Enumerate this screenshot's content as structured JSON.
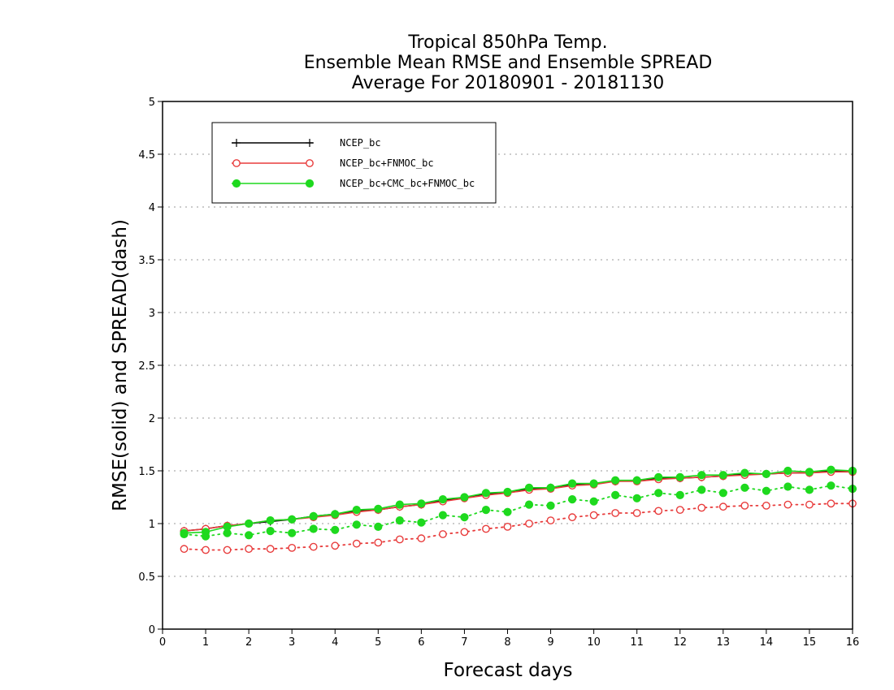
{
  "chart_data": {
    "type": "line",
    "title": [
      "Tropical 850hPa Temp.",
      "Ensemble Mean RMSE and Ensemble SPREAD",
      "Average For 20180901 - 20181130"
    ],
    "xlabel": "Forecast days",
    "ylabel": "RMSE(solid) and SPREAD(dash)",
    "xlim": [
      0,
      16
    ],
    "ylim": [
      0,
      5
    ],
    "xticks": [
      "0",
      "1",
      "2",
      "3",
      "4",
      "5",
      "6",
      "7",
      "8",
      "9",
      "10",
      "11",
      "12",
      "13",
      "14",
      "15",
      "16"
    ],
    "yticks": [
      "0",
      "0.5",
      "1",
      "1.5",
      "2",
      "2.5",
      "3",
      "3.5",
      "4",
      "4.5",
      "5"
    ],
    "grid": "horizontal-dotted",
    "legend_position": "top-left",
    "x": [
      0.5,
      1,
      1.5,
      2,
      2.5,
      3,
      3.5,
      4,
      4.5,
      5,
      5.5,
      6,
      6.5,
      7,
      7.5,
      8,
      8.5,
      9,
      9.5,
      10,
      10.5,
      11,
      11.5,
      12,
      12.5,
      13,
      13.5,
      14,
      14.5,
      15,
      15.5,
      16
    ],
    "series": [
      {
        "name": "NCEP_bc",
        "color": "#000000",
        "marker": "plus",
        "rmse": [
          0.93,
          0.95,
          0.98,
          1.0,
          1.02,
          1.04,
          1.07,
          1.09,
          1.12,
          1.13,
          1.16,
          1.18,
          1.22,
          1.25,
          1.28,
          1.3,
          1.33,
          1.34,
          1.37,
          1.38,
          1.4,
          1.41,
          1.43,
          1.43,
          1.44,
          1.45,
          1.47,
          1.47,
          1.48,
          1.48,
          1.5,
          1.5
        ],
        "spread": []
      },
      {
        "name": "NCEP_bc+FNMOC_bc",
        "color": "#e83c3c",
        "marker": "open-circle",
        "rmse": [
          0.93,
          0.95,
          0.98,
          1.0,
          1.03,
          1.04,
          1.06,
          1.08,
          1.11,
          1.13,
          1.16,
          1.18,
          1.21,
          1.24,
          1.27,
          1.29,
          1.32,
          1.33,
          1.36,
          1.37,
          1.4,
          1.4,
          1.42,
          1.43,
          1.44,
          1.45,
          1.46,
          1.47,
          1.48,
          1.48,
          1.49,
          1.49
        ],
        "spread": [
          0.76,
          0.75,
          0.75,
          0.76,
          0.76,
          0.77,
          0.78,
          0.79,
          0.81,
          0.82,
          0.85,
          0.86,
          0.9,
          0.92,
          0.95,
          0.97,
          1.0,
          1.03,
          1.06,
          1.08,
          1.1,
          1.1,
          1.12,
          1.13,
          1.15,
          1.16,
          1.17,
          1.17,
          1.18,
          1.18,
          1.19,
          1.19
        ]
      },
      {
        "name": "NCEP_bc+CMC_bc+FNMOC_bc",
        "color": "#1ed91e",
        "marker": "filled-circle",
        "rmse": [
          0.91,
          0.92,
          0.97,
          1.0,
          1.03,
          1.04,
          1.07,
          1.09,
          1.13,
          1.14,
          1.18,
          1.19,
          1.23,
          1.25,
          1.29,
          1.3,
          1.34,
          1.34,
          1.38,
          1.38,
          1.41,
          1.41,
          1.44,
          1.44,
          1.46,
          1.46,
          1.48,
          1.47,
          1.5,
          1.49,
          1.51,
          1.5
        ],
        "spread": [
          0.9,
          0.88,
          0.91,
          0.89,
          0.93,
          0.91,
          0.95,
          0.94,
          0.99,
          0.97,
          1.03,
          1.01,
          1.08,
          1.06,
          1.13,
          1.11,
          1.18,
          1.17,
          1.23,
          1.21,
          1.27,
          1.24,
          1.29,
          1.27,
          1.32,
          1.29,
          1.34,
          1.31,
          1.35,
          1.32,
          1.36,
          1.33
        ]
      }
    ]
  }
}
